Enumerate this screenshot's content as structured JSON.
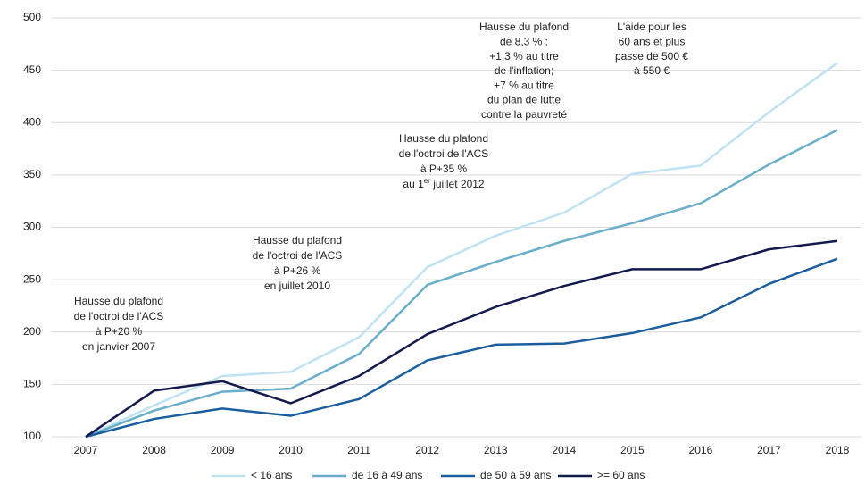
{
  "chart_data": {
    "type": "line",
    "x": [
      2007,
      2008,
      2009,
      2010,
      2011,
      2012,
      2013,
      2014,
      2015,
      2016,
      2017,
      2018
    ],
    "xlim": [
      2007,
      2018
    ],
    "xticks": [
      2007,
      2008,
      2009,
      2010,
      2011,
      2012,
      2013,
      2014,
      2015,
      2016,
      2017,
      2018
    ],
    "ylim": [
      100,
      500
    ],
    "yticks": [
      100,
      150,
      200,
      250,
      300,
      350,
      400,
      450,
      500
    ],
    "grid": true,
    "legend": "bottom",
    "series": [
      {
        "name": "< 16 ans",
        "color": "#bfe2f2",
        "values": [
          100,
          130,
          158,
          162,
          195,
          262,
          292,
          314,
          351,
          359,
          410,
          457
        ]
      },
      {
        "name": "de 16 à 49 ans",
        "color": "#6aaec9",
        "values": [
          100,
          125,
          143,
          146,
          179,
          245,
          267,
          287,
          304,
          323,
          360,
          393
        ]
      },
      {
        "name": "de 50 à 59 ans",
        "color": "#1b5e9e",
        "values": [
          100,
          117,
          127,
          120,
          136,
          173,
          188,
          189,
          199,
          214,
          246,
          270
        ]
      },
      {
        "name": ">= 60 ans",
        "color": "#141a4d",
        "values": [
          100,
          144,
          153,
          132,
          158,
          198,
          224,
          244,
          260,
          260,
          279,
          287
        ]
      }
    ],
    "annotations": [
      {
        "lines": [
          "Hausse du plafond",
          "de l'octroi de l'ACS",
          "à P+20 %",
          "en janvier 2007"
        ]
      },
      {
        "lines": [
          "Hausse du plafond",
          "de l'octroi de l'ACS",
          "à P+26 %",
          "en juillet 2010"
        ]
      },
      {
        "lines": [
          "Hausse du plafond",
          "de l'octroi de l'ACS",
          "à P+35 %",
          {
            "before": "au 1",
            "sup": "er",
            "after": " juillet 2012"
          }
        ]
      },
      {
        "lines": [
          "Hausse du plafond",
          "de 8,3 % :",
          "+1,3 % au titre",
          "de l'inflation;",
          "+7 % au titre",
          "du plan de lutte",
          "contre la pauvreté"
        ]
      },
      {
        "lines": [
          "L'aide pour les",
          "60 ans et plus",
          "passe de 500 €",
          "à 550 €"
        ]
      }
    ]
  }
}
